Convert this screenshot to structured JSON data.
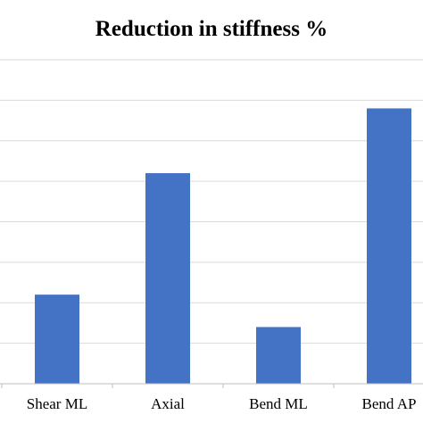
{
  "chart_data": {
    "type": "bar",
    "title": "Reduction in stiffness %",
    "categories": [
      "Shear ML",
      "Axial",
      "Bend ML",
      "Bend AP"
    ],
    "values": [
      11,
      26,
      7,
      34
    ],
    "ylim": [
      0,
      40
    ],
    "ytick_step": 5,
    "grid": true,
    "legend": "none",
    "bar_color": "#4472c4",
    "xlabel": "",
    "ylabel": ""
  }
}
